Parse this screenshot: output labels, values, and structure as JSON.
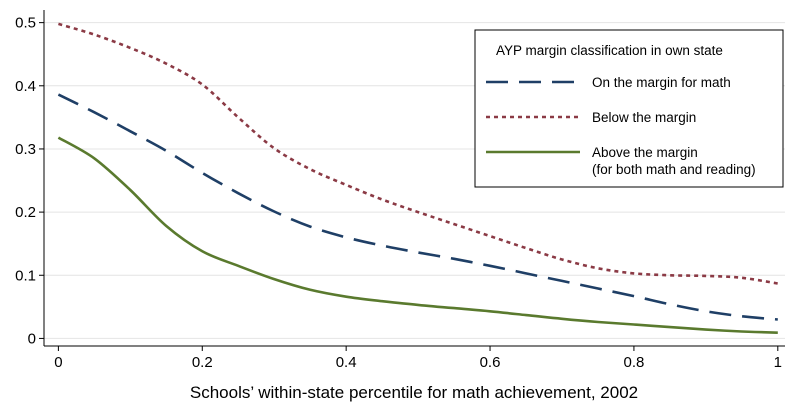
{
  "chart_data": {
    "type": "line",
    "title": "",
    "xlabel": "Schools’ within-state percentile for math achievement, 2002",
    "ylabel": "",
    "xlim": [
      -0.02,
      1.01
    ],
    "ylim": [
      -0.012,
      0.52
    ],
    "xticks": [
      0,
      0.2,
      0.4,
      0.6,
      0.8,
      1
    ],
    "xtick_labels": [
      "0",
      "0.2",
      "0.4",
      "0.6",
      "0.8",
      "1"
    ],
    "yticks": [
      0,
      0.1,
      0.2,
      0.3,
      0.4,
      0.5
    ],
    "ytick_labels": [
      "0",
      "0.1",
      "0.2",
      "0.3",
      "0.4",
      "0.5"
    ],
    "grid": "horizontal",
    "legend": {
      "title": "AYP margin classification in own state",
      "placement": "top-right",
      "entries": [
        {
          "lines": [
            "On the margin for math"
          ]
        },
        {
          "lines": [
            "Below the margin"
          ]
        },
        {
          "lines": [
            "Above the margin",
            "(for both math and reading)"
          ]
        }
      ]
    },
    "x": [
      0,
      0.05,
      0.1,
      0.15,
      0.2,
      0.25,
      0.3,
      0.35,
      0.4,
      0.45,
      0.5,
      0.55,
      0.6,
      0.65,
      0.7,
      0.75,
      0.8,
      0.85,
      0.9,
      0.95,
      1.0
    ],
    "series": [
      {
        "name": "On the margin for math",
        "color": "#1f3f66",
        "dash": "long-dash",
        "values": [
          0.386,
          0.358,
          0.328,
          0.297,
          0.262,
          0.23,
          0.201,
          0.177,
          0.16,
          0.147,
          0.136,
          0.126,
          0.115,
          0.103,
          0.091,
          0.079,
          0.067,
          0.054,
          0.043,
          0.035,
          0.03
        ]
      },
      {
        "name": "Below the margin",
        "color": "#8b3a45",
        "dash": "short-dash",
        "values": [
          0.498,
          0.481,
          0.46,
          0.435,
          0.402,
          0.35,
          0.301,
          0.268,
          0.243,
          0.22,
          0.2,
          0.181,
          0.162,
          0.143,
          0.125,
          0.111,
          0.103,
          0.1,
          0.099,
          0.096,
          0.087
        ]
      },
      {
        "name": "Above the margin (for both math and reading)",
        "color": "#5a7a2e",
        "dash": "solid",
        "values": [
          0.318,
          0.285,
          0.235,
          0.178,
          0.138,
          0.115,
          0.094,
          0.077,
          0.066,
          0.059,
          0.053,
          0.048,
          0.043,
          0.037,
          0.031,
          0.026,
          0.022,
          0.018,
          0.014,
          0.011,
          0.009
        ]
      }
    ]
  }
}
